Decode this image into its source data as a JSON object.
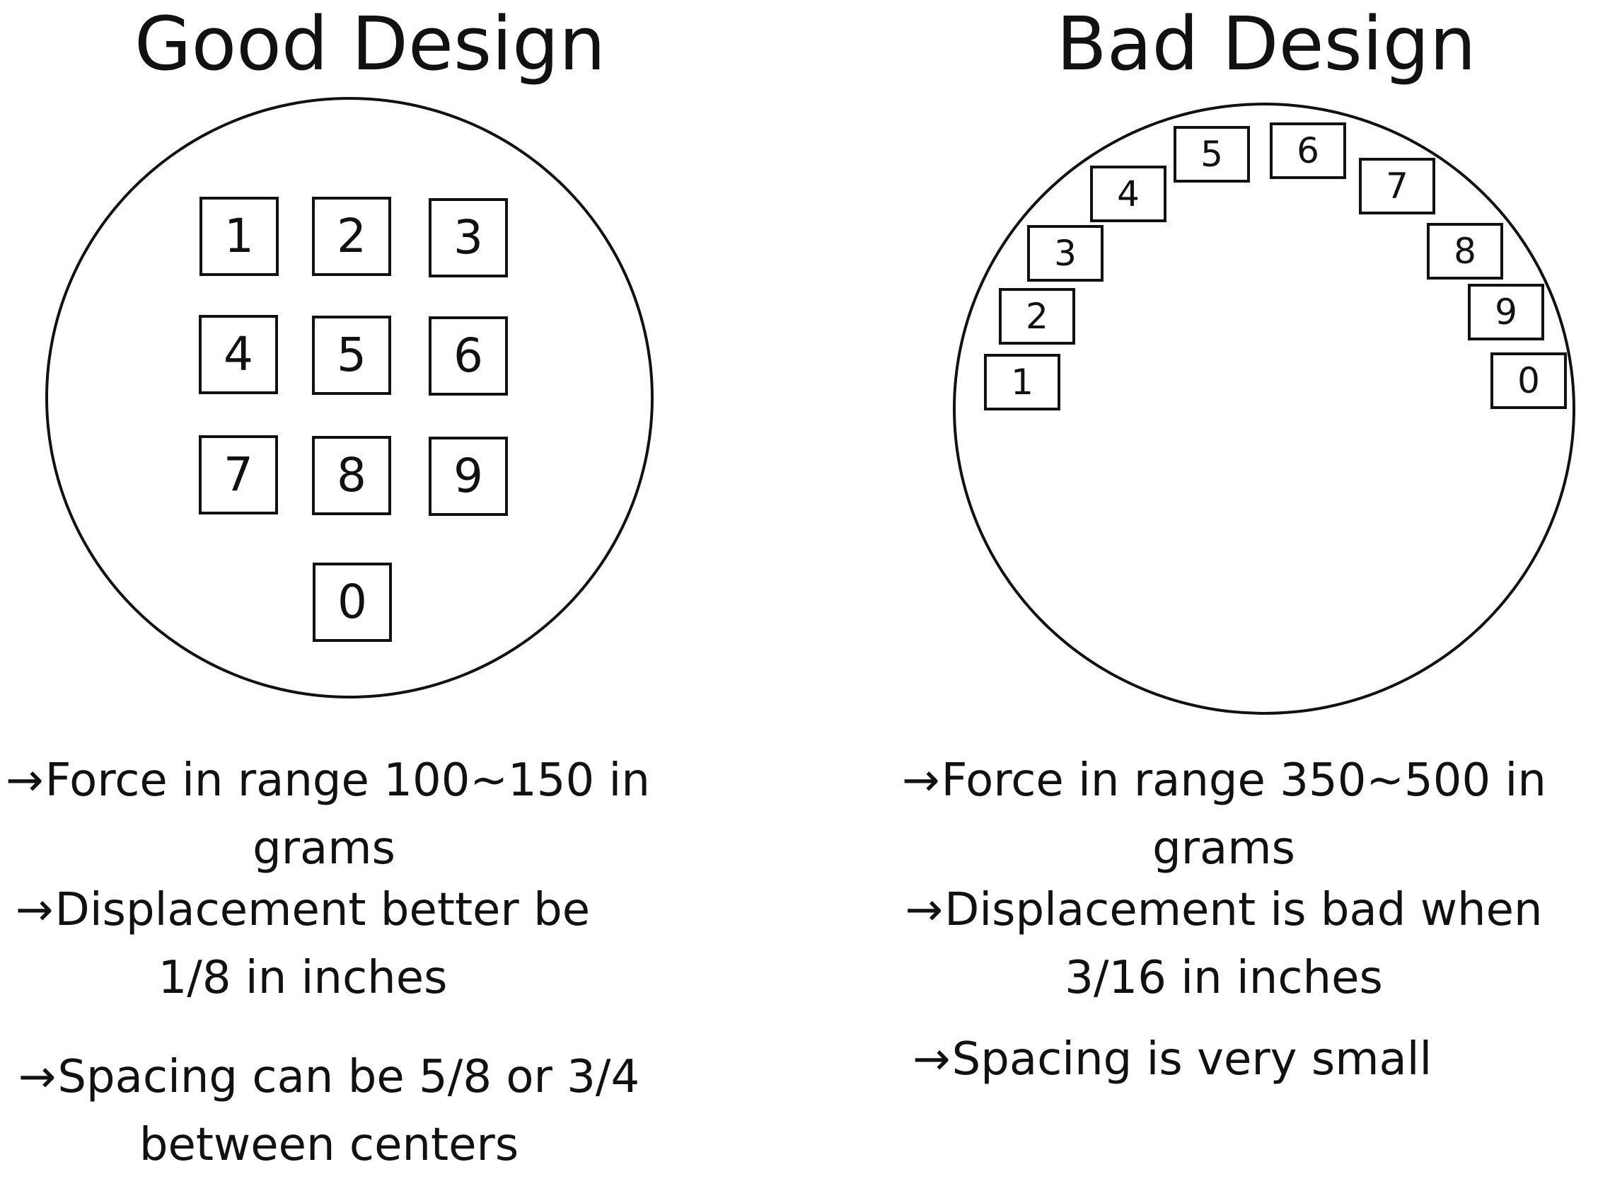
{
  "good": {
    "title": "Good Design",
    "keys": [
      "1",
      "2",
      "3",
      "4",
      "5",
      "6",
      "7",
      "8",
      "9",
      "0"
    ],
    "notes": [
      {
        "arrow": "→",
        "line1": "Force in range 100~150 in",
        "line2": "grams"
      },
      {
        "arrow": "→",
        "line1": "Displacement better be",
        "line2": "1/8 in inches"
      },
      {
        "arrow": "→",
        "line1": "Spacing can be 5/8 or 3/4",
        "line2": "between centers"
      }
    ]
  },
  "bad": {
    "title": "Bad Design",
    "keys": [
      "1",
      "2",
      "3",
      "4",
      "5",
      "6",
      "7",
      "8",
      "9",
      "0"
    ],
    "notes": [
      {
        "arrow": "→",
        "line1": "Force in range 350~500 in",
        "line2": "grams"
      },
      {
        "arrow": "→",
        "line1": "Displacement is bad when",
        "line2": "3/16 in inches"
      },
      {
        "arrow": "→",
        "line1": "Spacing is very small"
      }
    ]
  },
  "colors": {
    "stroke": "#111111",
    "background": "#ffffff"
  }
}
